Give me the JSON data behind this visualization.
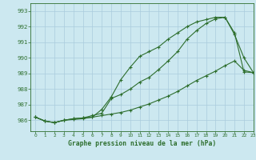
{
  "title": "Graphe pression niveau de la mer (hPa)",
  "background_color": "#cce8f0",
  "grid_color": "#aaccdd",
  "line_color": "#2d6e2d",
  "xlim": [
    -0.5,
    23
  ],
  "ylim": [
    985.3,
    993.5
  ],
  "ytick_vals": [
    986,
    987,
    988,
    989,
    990,
    991,
    992,
    993
  ],
  "xtick_vals": [
    0,
    1,
    2,
    3,
    4,
    5,
    6,
    7,
    8,
    9,
    10,
    11,
    12,
    13,
    14,
    15,
    16,
    17,
    18,
    19,
    20,
    21,
    22,
    23
  ],
  "hours": [
    0,
    1,
    2,
    3,
    4,
    5,
    6,
    7,
    8,
    9,
    10,
    11,
    12,
    13,
    14,
    15,
    16,
    17,
    18,
    19,
    20,
    21,
    22,
    23
  ],
  "series1": [
    986.2,
    985.95,
    985.85,
    986.0,
    986.1,
    986.15,
    986.2,
    986.7,
    987.5,
    988.6,
    989.4,
    990.1,
    990.4,
    990.7,
    991.2,
    991.6,
    992.0,
    992.3,
    992.45,
    992.6,
    992.6,
    991.6,
    989.1,
    989.05
  ],
  "series2": [
    986.2,
    985.95,
    985.85,
    986.0,
    986.1,
    986.15,
    986.3,
    986.45,
    987.4,
    987.65,
    988.0,
    988.45,
    988.75,
    989.25,
    989.8,
    990.4,
    991.2,
    991.75,
    992.2,
    992.5,
    992.6,
    991.5,
    990.0,
    989.05
  ],
  "series3": [
    986.2,
    985.95,
    985.85,
    986.0,
    986.05,
    986.1,
    986.2,
    986.3,
    986.4,
    986.5,
    986.65,
    986.85,
    987.05,
    987.3,
    987.55,
    987.85,
    988.2,
    988.55,
    988.85,
    989.15,
    989.5,
    989.8,
    989.2,
    989.05
  ]
}
